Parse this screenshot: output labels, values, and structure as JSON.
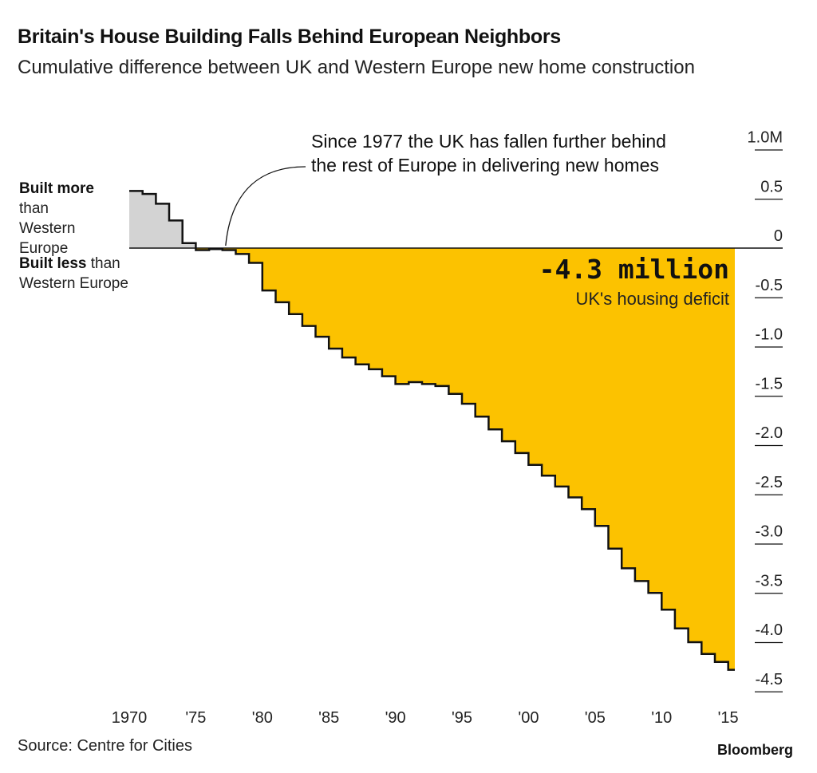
{
  "title": "Britain's House Building Falls Behind European Neighbors",
  "subtitle": "Cumulative difference between UK and Western Europe new home construction",
  "annotation": "Since 1977 the UK has fallen further behind the rest of Europe in delivering new homes",
  "legend": {
    "above_bold": "Built more",
    "above_rest": " than Western Europe",
    "below_bold": "Built less",
    "below_rest": " than Western Europe"
  },
  "highlight": {
    "value": "-4.3 million",
    "label": "UK's housing deficit"
  },
  "source": "Source: Centre for Cities",
  "brand": "Bloomberg",
  "colors": {
    "positive": "#d3d3d3",
    "negative": "#fcc200",
    "line": "#111111",
    "axis": "#111111"
  },
  "chart_data": {
    "type": "area",
    "step": true,
    "unit": "million homes",
    "x": [
      1970,
      1971,
      1972,
      1973,
      1974,
      1975,
      1976,
      1977,
      1978,
      1979,
      1980,
      1981,
      1982,
      1983,
      1984,
      1985,
      1986,
      1987,
      1988,
      1989,
      1990,
      1991,
      1992,
      1993,
      1994,
      1995,
      1996,
      1997,
      1998,
      1999,
      2000,
      2001,
      2002,
      2003,
      2004,
      2005,
      2006,
      2007,
      2008,
      2009,
      2010,
      2011,
      2012,
      2013,
      2014,
      2015
    ],
    "values": [
      0.58,
      0.55,
      0.45,
      0.28,
      0.05,
      -0.02,
      -0.01,
      -0.02,
      -0.06,
      -0.15,
      -0.43,
      -0.55,
      -0.67,
      -0.79,
      -0.9,
      -1.02,
      -1.11,
      -1.18,
      -1.23,
      -1.3,
      -1.38,
      -1.36,
      -1.38,
      -1.4,
      -1.48,
      -1.58,
      -1.71,
      -1.84,
      -1.96,
      -2.08,
      -2.2,
      -2.31,
      -2.42,
      -2.53,
      -2.65,
      -2.82,
      -3.05,
      -3.25,
      -3.38,
      -3.5,
      -3.67,
      -3.86,
      -4.0,
      -4.12,
      -4.2,
      -4.28
    ],
    "y_ticks": [
      "1.0M",
      "0.5",
      "0",
      "-0.5",
      "-1.0",
      "-1.5",
      "-2.0",
      "-2.5",
      "-3.0",
      "-3.5",
      "-4.0",
      "-4.5"
    ],
    "y_tick_values": [
      1.0,
      0.5,
      0,
      -0.5,
      -1.0,
      -1.5,
      -2.0,
      -2.5,
      -3.0,
      -3.5,
      -4.0,
      -4.5
    ],
    "x_ticks": [
      "1970",
      "'75",
      "'80",
      "'85",
      "'90",
      "'95",
      "'00",
      "'05",
      "'10",
      "'15"
    ],
    "x_tick_values": [
      1970,
      1975,
      1980,
      1985,
      1990,
      1995,
      2000,
      2005,
      2010,
      2015
    ],
    "xlim": [
      1970,
      2015.5
    ],
    "ylim": [
      -4.5,
      1.0
    ],
    "annotation_year": 1977
  }
}
